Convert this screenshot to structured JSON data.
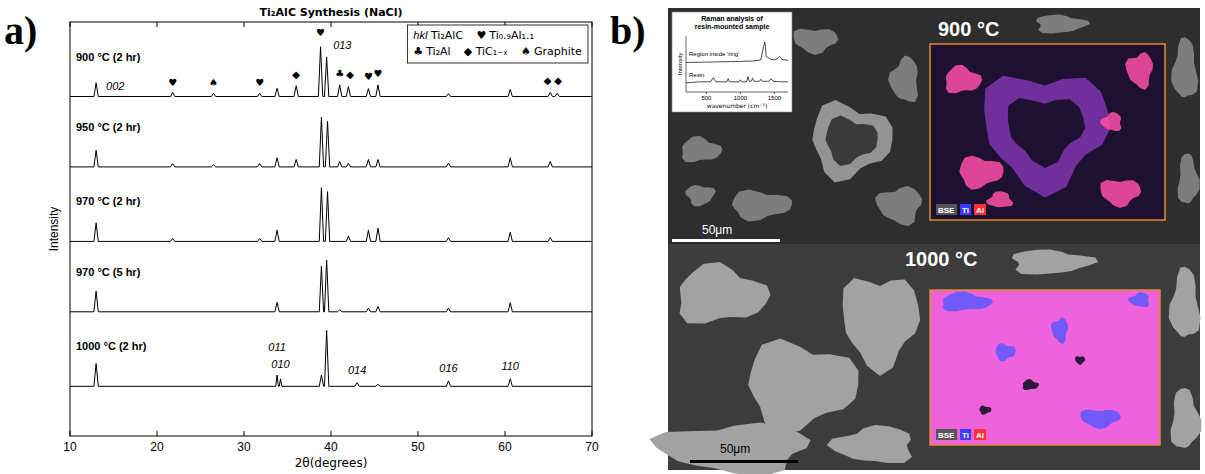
{
  "chart_data": [
    {
      "type": "line",
      "panel_label": "a)",
      "title": "Ti₂AlC Synthesis (NaCl)",
      "x_label": "2θ(degrees)",
      "y_label": "Intensity",
      "xlim": [
        10,
        70
      ],
      "xticks": [
        10,
        20,
        30,
        40,
        50,
        60,
        70
      ],
      "ylim": [
        0,
        100
      ],
      "tick_labels": "x",
      "grid": false,
      "legend": "upper right",
      "phases": [
        {
          "symbol": "hkl",
          "name": "Ti₂AlC"
        },
        {
          "symbol": "♥",
          "name": "Ti₀.₉Al₁.₁"
        },
        {
          "symbol": "♣",
          "name": "Ti₂Al"
        },
        {
          "symbol": "◆",
          "name": "TiC₁₋ₓ"
        },
        {
          "symbol": "♠",
          "name": "Graphite"
        }
      ],
      "series": [
        {
          "name": "900 °C (2 hr)",
          "color": "#000000",
          "x": [
            10,
            12.75,
            13,
            13.25,
            21.55,
            21.8,
            22.05,
            26.25,
            26.5,
            26.75,
            31.55,
            31.8,
            32.05,
            33.55,
            33.8,
            34.05,
            35.75,
            36,
            36.25,
            38.55,
            38.8,
            39.05,
            39.25,
            39.5,
            39.75,
            40.75,
            41,
            41.25,
            41.75,
            42,
            42.25,
            44.05,
            44.3,
            44.55,
            45.15,
            45.4,
            45.65,
            53.25,
            53.5,
            53.75,
            60.35,
            60.6,
            60.85,
            64.95,
            65.2,
            65.45,
            65.75,
            66,
            66.25,
            70
          ],
          "values": [
            82,
            82,
            85.3,
            82,
            82,
            83,
            82,
            82,
            82.8,
            82,
            82,
            82.8,
            82,
            82,
            84,
            82,
            82,
            84.6,
            82,
            82,
            94,
            82,
            82,
            91.5,
            82,
            82,
            84.8,
            82,
            82,
            84.4,
            82,
            82,
            83.9,
            82,
            82,
            84.8,
            82,
            82,
            82.7,
            82,
            82,
            83.7,
            82,
            82,
            83,
            82,
            82,
            82.8,
            82,
            82
          ]
        },
        {
          "name": "950 °C (2 hr)",
          "color": "#000000",
          "x": [
            10,
            12.75,
            13,
            13.25,
            21.55,
            21.8,
            22.05,
            26.25,
            26.5,
            26.75,
            31.55,
            31.8,
            32.05,
            33.55,
            33.8,
            34.05,
            35.75,
            36,
            36.25,
            38.65,
            38.9,
            39.15,
            39.35,
            39.6,
            39.85,
            40.75,
            41,
            41.25,
            41.75,
            42,
            42.25,
            44.05,
            44.3,
            44.55,
            45.15,
            45.4,
            45.65,
            53.25,
            53.5,
            53.75,
            60.35,
            60.6,
            60.85,
            64.95,
            65.2,
            65.45,
            70
          ],
          "values": [
            65,
            65,
            69,
            65,
            65,
            65.8,
            65,
            65,
            65.5,
            65,
            65,
            65.8,
            65,
            65,
            67.2,
            65,
            65,
            66.8,
            65,
            65,
            77,
            65,
            65,
            76,
            65,
            65,
            66.3,
            65,
            65,
            65.9,
            65,
            65,
            66.8,
            65,
            65,
            66.8,
            65,
            65,
            65.9,
            65,
            65,
            67.2,
            65,
            65,
            66.3,
            65,
            65
          ]
        },
        {
          "name": "970 °C (2 hr)",
          "color": "#000000",
          "x": [
            10,
            12.75,
            13,
            13.25,
            21.55,
            21.8,
            22.05,
            31.55,
            31.8,
            32.05,
            33.55,
            33.8,
            34.05,
            38.65,
            38.9,
            39.15,
            39.35,
            39.6,
            39.85,
            41.75,
            42,
            42.25,
            44.05,
            44.3,
            44.55,
            45.15,
            45.4,
            45.65,
            53.25,
            53.5,
            53.75,
            60.35,
            60.6,
            60.85,
            64.95,
            65.2,
            65.45,
            70
          ],
          "values": [
            47,
            47,
            51.5,
            47,
            47,
            47.7,
            47,
            47,
            47.7,
            47,
            47,
            49.7,
            47,
            47,
            60,
            47,
            47,
            59,
            47,
            47,
            48.3,
            47,
            47,
            49.7,
            47,
            47,
            50.2,
            47,
            47,
            47.9,
            47,
            47,
            49.2,
            47,
            47,
            47.9,
            47,
            47
          ]
        },
        {
          "name": "970 °C (5 hr)",
          "color": "#000000",
          "x": [
            10,
            12.75,
            13,
            13.25,
            33.55,
            33.8,
            34.05,
            38.65,
            38.9,
            39.15,
            39.25,
            39.5,
            39.75,
            40.75,
            41,
            41.25,
            44.05,
            44.3,
            44.55,
            45.15,
            45.4,
            45.65,
            53.25,
            53.5,
            53.75,
            60.35,
            60.6,
            60.85,
            70
          ],
          "values": [
            30,
            30,
            35,
            30,
            30,
            32.3,
            30,
            30,
            41,
            30,
            30,
            42.5,
            30,
            30,
            30.5,
            30,
            30,
            30.9,
            30,
            30,
            31.3,
            30,
            30,
            30.9,
            30,
            30,
            32.2,
            30,
            30
          ]
        },
        {
          "name": "1000 °C (2 hr)",
          "color": "#000000",
          "x": [
            10,
            12.75,
            13,
            13.25,
            33.65,
            33.8,
            33.95,
            34.05,
            34.2,
            34.35,
            38.65,
            38.9,
            39.15,
            39.25,
            39.5,
            39.75,
            42.75,
            43,
            43.25,
            45.15,
            45.4,
            45.65,
            53.25,
            53.5,
            53.75,
            60.35,
            60.6,
            60.85,
            70
          ],
          "values": [
            12,
            12,
            17.5,
            12,
            12,
            14.7,
            12,
            12,
            13.8,
            12,
            12,
            14.7,
            12,
            12,
            25.5,
            12,
            12,
            12.9,
            12,
            12,
            12.5,
            12,
            12,
            13.3,
            12,
            12,
            13.8,
            12,
            12
          ]
        }
      ],
      "annotations": [
        {
          "text": "002",
          "x": 15.2,
          "y": 83.5
        },
        {
          "text": "♥",
          "x": 21.8,
          "y": 84.5
        },
        {
          "text": "♠",
          "x": 26.5,
          "y": 84.5
        },
        {
          "text": "♥",
          "x": 31.8,
          "y": 84.5
        },
        {
          "text": "◆",
          "x": 36,
          "y": 86.5
        },
        {
          "text": "♥",
          "x": 38.8,
          "y": 96.5
        },
        {
          "text": "013",
          "x": 41.3,
          "y": 93.5
        },
        {
          "text": "♣",
          "x": 41,
          "y": 86.8
        },
        {
          "text": "◆",
          "x": 42.2,
          "y": 86.4
        },
        {
          "text": "♥",
          "x": 44.3,
          "y": 85.9
        },
        {
          "text": "♥",
          "x": 45.4,
          "y": 86.8
        },
        {
          "text": "◆",
          "x": 64.9,
          "y": 85
        },
        {
          "text": "◆",
          "x": 66.1,
          "y": 85
        },
        {
          "text": "011",
          "x": 33.8,
          "y": 20.5
        },
        {
          "text": "010",
          "x": 34.2,
          "y": 16.5
        },
        {
          "text": "014",
          "x": 43,
          "y": 15
        },
        {
          "text": "016",
          "x": 53.5,
          "y": 15.5
        },
        {
          "text": "110",
          "x": 60.6,
          "y": 16
        }
      ]
    },
    {
      "type": "line",
      "title": "Raman analysis of resin-mounted sample",
      "x_label": "wavenumber (cm⁻¹)",
      "y_label": "Intensity",
      "xlim": [
        200,
        1700
      ],
      "xticks": [
        500,
        1000,
        1500
      ],
      "ylim": [
        0,
        110
      ],
      "tick_labels": "x",
      "grid": false,
      "series": [
        {
          "name": "Region inside 'ring'",
          "color": "#000000",
          "x": [
            200,
            600,
            1000,
            1200,
            1300,
            1340,
            1360,
            1380,
            1450,
            1500,
            1550,
            1580,
            1610,
            1700
          ],
          "values": [
            58,
            59,
            60,
            61,
            63,
            90,
            98,
            70,
            64,
            63,
            66,
            70,
            64,
            62
          ]
        },
        {
          "name": "Resin",
          "color": "#000000",
          "x": [
            200,
            400,
            560,
            600,
            640,
            800,
            820,
            840,
            980,
            1000,
            1020,
            1090,
            1110,
            1130,
            1160,
            1180,
            1200,
            1280,
            1300,
            1320,
            1420,
            1450,
            1480,
            1600,
            1700
          ],
          "values": [
            18,
            20,
            20,
            28,
            20,
            20,
            26,
            20,
            20,
            24,
            20,
            20,
            30,
            21,
            21,
            27,
            21,
            21,
            25,
            21,
            21,
            26,
            21,
            20,
            20
          ]
        }
      ]
    }
  ],
  "micrographs": {
    "panel_label": "b)",
    "map_colors": [
      "#555555",
      "#3b3bff",
      "#ff3030"
    ],
    "images": [
      {
        "label": "900 °C",
        "scale_bar": "50μm",
        "map_channels": [
          "BSE",
          "Ti",
          "Al"
        ]
      },
      {
        "label": "1000 °C",
        "scale_bar": "50μm",
        "map_channels": [
          "BSE",
          "Ti",
          "Al"
        ]
      }
    ]
  }
}
